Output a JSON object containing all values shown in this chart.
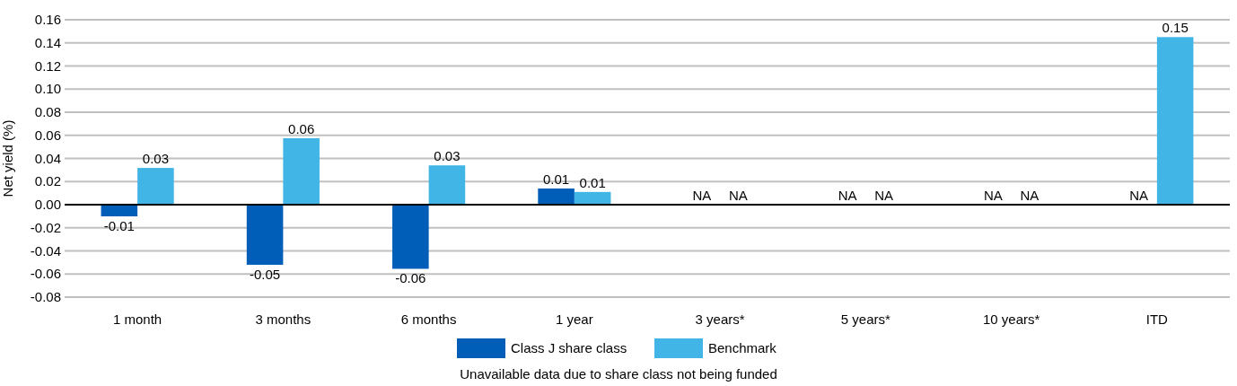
{
  "chart_data": {
    "type": "bar",
    "ylabel": "Net yield (%)",
    "categories": [
      "1 month",
      "3 months",
      "6 months",
      "1 year",
      "3 years*",
      "5 years*",
      "10 years*",
      "ITD"
    ],
    "series": [
      {
        "name": "Class J share class",
        "color": "#005eb8",
        "values": [
          -0.0101,
          -0.052,
          -0.0555,
          0.014,
          null,
          null,
          null,
          null
        ],
        "value_labels": [
          "-0.01",
          "-0.05",
          "-0.06",
          "0.01",
          "NA",
          "NA",
          "NA",
          "NA"
        ]
      },
      {
        "name": "Benchmark",
        "color": "#41b6e6",
        "values": [
          0.0318,
          0.0575,
          0.034,
          0.011,
          null,
          null,
          null,
          0.145
        ],
        "value_labels": [
          "0.03",
          "0.06",
          "0.03",
          "0.01",
          "NA",
          "NA",
          "NA",
          "0.15"
        ]
      }
    ],
    "ylim": [
      -0.08,
      0.16
    ],
    "yticks": [
      {
        "value": -0.08,
        "label": "-0.08"
      },
      {
        "value": -0.06,
        "label": "-0.06"
      },
      {
        "value": -0.04,
        "label": "-0.04"
      },
      {
        "value": -0.02,
        "label": "-0.02"
      },
      {
        "value": 0,
        "label": "0.00"
      },
      {
        "value": 0.02,
        "label": "0.02"
      },
      {
        "value": 0.04,
        "label": "0.04"
      },
      {
        "value": 0.06,
        "label": "0.06"
      },
      {
        "value": 0.08,
        "label": "0.08"
      },
      {
        "value": 0.1,
        "label": "0.10"
      },
      {
        "value": 0.12,
        "label": "0.12"
      },
      {
        "value": 0.14,
        "label": "0.14"
      },
      {
        "value": 0.16,
        "label": "0.16"
      }
    ],
    "grid": "y",
    "legend": "bottom",
    "annotations": [
      "Unavailable data due to share class not being funded"
    ]
  }
}
